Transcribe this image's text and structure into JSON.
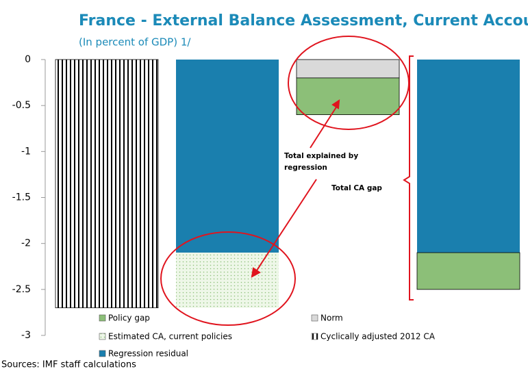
{
  "chart_data": {
    "type": "bar",
    "stacked": true,
    "title": "France - External Balance Assessment, Current Account",
    "subtitle": "(In percent of GDP) 1/",
    "source": "Sources: IMF staff calculations",
    "annotations": [
      "Total explained by regression",
      "Total CA gap"
    ],
    "categories": [
      null,
      null,
      null,
      null
    ],
    "series": [
      {
        "name": "Policy gap",
        "color": "#8cbf78",
        "values": [
          null,
          null,
          -0.4,
          -0.4
        ]
      },
      {
        "name": "Norm",
        "color": "#d9d9d9",
        "values": [
          null,
          null,
          -0.2,
          null
        ]
      },
      {
        "name": "Estimated CA, current policies",
        "color": "#8cbf78",
        "pattern": "dots",
        "values": [
          null,
          -0.6,
          null,
          null
        ]
      },
      {
        "name": "Cyclically adjusted 2012 CA",
        "color": "#000000",
        "pattern": "stripes",
        "values": [
          -2.7,
          null,
          null,
          null
        ]
      },
      {
        "name": "Regression residual",
        "color": "#1a7fae",
        "values": [
          null,
          -2.1,
          null,
          -2.1
        ]
      }
    ],
    "ylim": [
      -3,
      0
    ],
    "yticks": [
      0,
      -0.5,
      -1,
      -1.5,
      -2,
      -2.5,
      -3
    ]
  }
}
